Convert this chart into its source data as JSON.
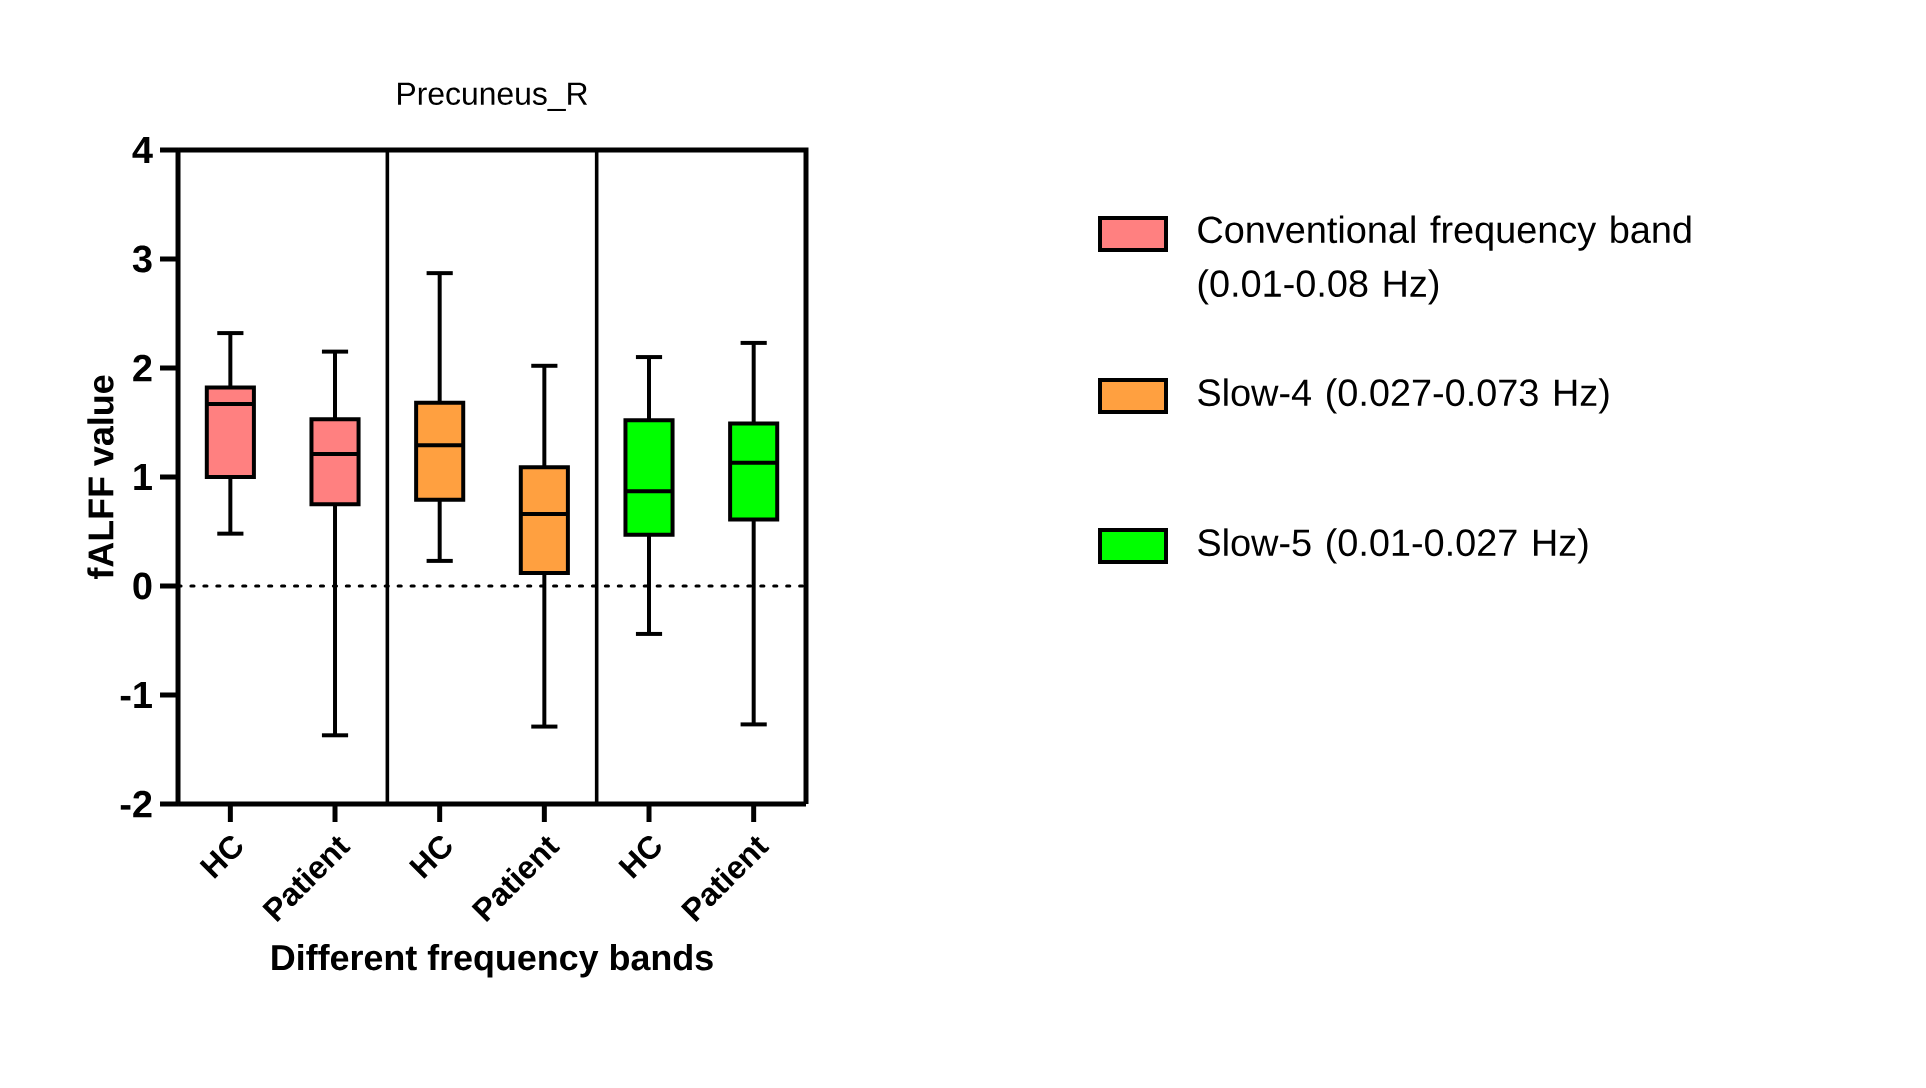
{
  "chart_data": {
    "type": "box",
    "title": "Precuneus_R",
    "xlabel": "Different frequency bands",
    "ylabel": "fALFF value",
    "categories": [
      "HC",
      "Patient",
      "HC",
      "Patient",
      "HC",
      "Patient"
    ],
    "ylim": [
      -2,
      4
    ],
    "yticks": [
      -2,
      -1,
      0,
      1,
      2,
      3,
      4
    ],
    "grid": false,
    "legend": "right",
    "ref_lines": [
      {
        "axis": "y",
        "value": 0,
        "line_style": "dotted",
        "color": "#000000"
      }
    ],
    "series": [
      {
        "name": "Conventional frequency band (0.01-0.08 Hz)",
        "color": "#ff8080",
        "boxes": [
          {
            "low": 0.48,
            "q1": 1.0,
            "median": 1.67,
            "q3": 1.82,
            "high": 2.32
          },
          {
            "low": -1.37,
            "q1": 0.75,
            "median": 1.21,
            "q3": 1.53,
            "high": 2.15
          },
          null,
          null,
          null,
          null
        ]
      },
      {
        "name": "Slow-4 (0.027-0.073 Hz)",
        "color": "#ffa040",
        "boxes": [
          null,
          null,
          {
            "low": 0.23,
            "q1": 0.79,
            "median": 1.29,
            "q3": 1.68,
            "high": 2.87
          },
          {
            "low": -1.29,
            "q1": 0.12,
            "median": 0.66,
            "q3": 1.09,
            "high": 2.02
          },
          null,
          null
        ]
      },
      {
        "name": "Slow-5 (0.01-0.027 Hz)",
        "color": "#00ff00",
        "boxes": [
          null,
          null,
          null,
          null,
          {
            "low": -0.44,
            "q1": 0.47,
            "median": 0.87,
            "q3": 1.52,
            "high": 2.1
          },
          {
            "low": -1.27,
            "q1": 0.61,
            "median": 1.13,
            "q3": 1.49,
            "high": 2.23
          }
        ]
      }
    ]
  }
}
